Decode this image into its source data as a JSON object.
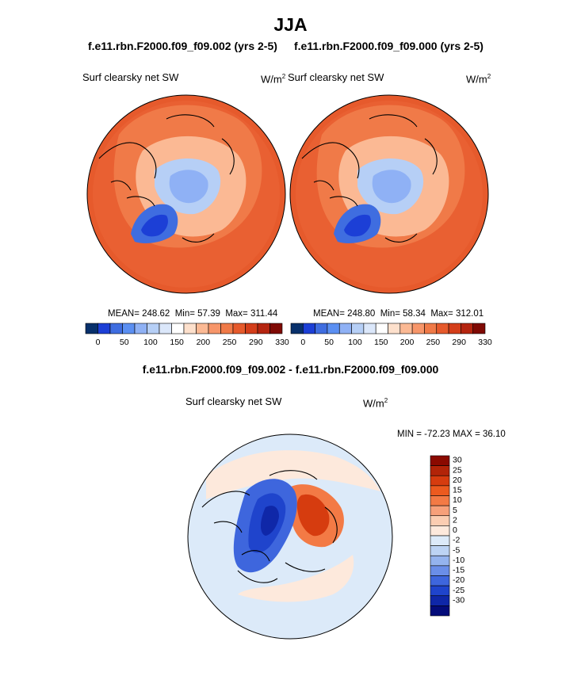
{
  "main_title": "JJA",
  "panels": [
    {
      "case_title": "f.e11.rbn.F2000.f09_f09.002 (yrs 2-5)",
      "variable": "Surf clearsky net SW",
      "units_base": "W/m",
      "units_exp": "2",
      "stats_mean": "MEAN= 248.62",
      "stats_min": "Min=  57.39",
      "stats_max": "Max= 311.44"
    },
    {
      "case_title": "f.e11.rbn.F2000.f09_f09.000 (yrs 2-5)",
      "variable": "Surf clearsky net SW",
      "units_base": "W/m",
      "units_exp": "2",
      "stats_mean": "MEAN= 248.80",
      "stats_min": "Min=  58.34",
      "stats_max": "Max= 312.01"
    }
  ],
  "difference": {
    "title": "f.e11.rbn.F2000.f09_f09.002 - f.e11.rbn.F2000.f09_f09.000",
    "variable": "Surf clearsky net SW",
    "units_base": "W/m",
    "units_exp": "2",
    "minmax": "MIN = -72.23 MAX =  36.10"
  },
  "chart_data": [
    {
      "type": "heatmap",
      "projection": "north-polar-stereographic",
      "title": "f.e11.rbn.F2000.f09_f09.002 (yrs 2-5)",
      "variable": "Surf clearsky net SW",
      "units": "W/m2",
      "mean": 248.62,
      "min": 57.39,
      "max": 311.44,
      "colorbar_ticks": [
        "0",
        "50",
        "100",
        "150",
        "200",
        "250",
        "290",
        "330"
      ],
      "colorbar_colors": [
        "#08306b",
        "#1c3fd6",
        "#3f6de0",
        "#5b8ff2",
        "#8fb1f5",
        "#b6cff6",
        "#dbe7fa",
        "#ffffff",
        "#fde0cc",
        "#fbb994",
        "#f7966a",
        "#f07a48",
        "#e65a2c",
        "#d43e1a",
        "#b52510",
        "#7f0a04"
      ]
    },
    {
      "type": "heatmap",
      "projection": "north-polar-stereographic",
      "title": "f.e11.rbn.F2000.f09_f09.000 (yrs 2-5)",
      "variable": "Surf clearsky net SW",
      "units": "W/m2",
      "mean": 248.8,
      "min": 58.34,
      "max": 312.01,
      "colorbar_ticks": [
        "0",
        "50",
        "100",
        "150",
        "200",
        "250",
        "290",
        "330"
      ],
      "colorbar_colors": [
        "#08306b",
        "#1c3fd6",
        "#3f6de0",
        "#5b8ff2",
        "#8fb1f5",
        "#b6cff6",
        "#dbe7fa",
        "#ffffff",
        "#fde0cc",
        "#fbb994",
        "#f7966a",
        "#f07a48",
        "#e65a2c",
        "#d43e1a",
        "#b52510",
        "#7f0a04"
      ]
    },
    {
      "type": "heatmap",
      "projection": "north-polar-stereographic",
      "title": "f.e11.rbn.F2000.f09_f09.002 - f.e11.rbn.F2000.f09_f09.000",
      "variable": "Surf clearsky net SW",
      "units": "W/m2",
      "min": -72.23,
      "max": 36.1,
      "colorbar_ticks": [
        "30",
        "25",
        "20",
        "15",
        "10",
        "5",
        "2",
        "0",
        "-2",
        "-5",
        "-10",
        "-15",
        "-20",
        "-25",
        "-30"
      ],
      "colorbar_colors": [
        "#8b0a00",
        "#b22408",
        "#d63c0f",
        "#ec5a1f",
        "#f37a45",
        "#f7a07a",
        "#fbcdb2",
        "#fde9dc",
        "#dceaf9",
        "#bcd3f4",
        "#94b3ee",
        "#6a8ee8",
        "#3e66dd",
        "#1f44cc",
        "#0f27a8",
        "#040c7a"
      ]
    }
  ]
}
